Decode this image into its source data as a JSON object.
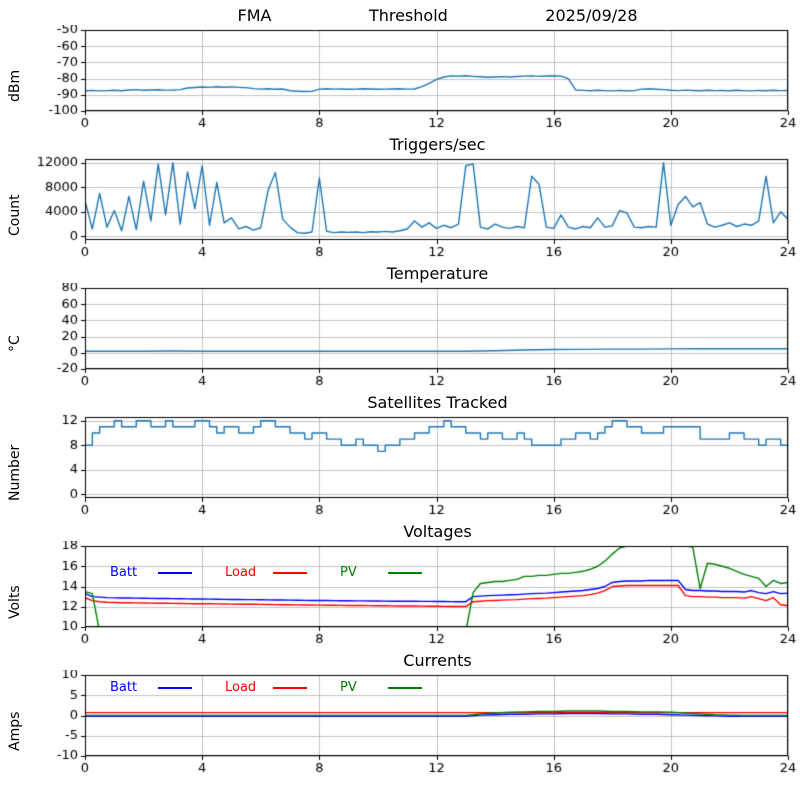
{
  "figure": {
    "background": "#ffffff",
    "grid_color": "#b4b4b4",
    "axis_color": "#000000",
    "default_line_color": "#1f77b4"
  },
  "chart_data": {
    "note": "six stacked time-series subplots, x axis hours 0-24"
  },
  "charts": [
    {
      "id": "fma",
      "title_parts": [
        "FMA",
        "Threshold",
        "2025/09/28"
      ],
      "ylabel": "dBm",
      "type": "line",
      "x_start": 0,
      "x_step": 0.25,
      "xlim": [
        0,
        24
      ],
      "ylim": [
        -100,
        -50
      ],
      "xticks": [
        0,
        4,
        8,
        12,
        16,
        20,
        24
      ],
      "yticks": [
        -100,
        -90,
        -80,
        -70,
        -60,
        -50
      ],
      "grid": true,
      "series": [
        {
          "name": "signal-dbm",
          "color": "#1f77b4",
          "values": [
            -87.5,
            -87.3,
            -87.6,
            -87.4,
            -87.2,
            -87.5,
            -87.0,
            -86.8,
            -87.2,
            -87.0,
            -86.9,
            -87.1,
            -87.0,
            -86.8,
            -85.8,
            -85.5,
            -85.2,
            -85.4,
            -85.0,
            -85.3,
            -85.1,
            -85.4,
            -85.6,
            -86.2,
            -86.5,
            -86.3,
            -86.6,
            -86.4,
            -87.5,
            -87.8,
            -88.0,
            -87.9,
            -86.5,
            -86.3,
            -86.5,
            -86.4,
            -86.6,
            -86.5,
            -86.3,
            -86.4,
            -86.6,
            -86.5,
            -86.4,
            -86.3,
            -86.5,
            -86.4,
            -85.0,
            -83.0,
            -80.5,
            -79.0,
            -78.3,
            -78.5,
            -78.2,
            -78.6,
            -78.9,
            -79.2,
            -79.0,
            -78.8,
            -79.0,
            -78.7,
            -78.5,
            -78.3,
            -78.6,
            -78.4,
            -78.2,
            -78.5,
            -80.0,
            -87.0,
            -87.3,
            -87.5,
            -87.2,
            -87.4,
            -87.6,
            -87.3,
            -87.5,
            -87.4,
            -86.5,
            -86.3,
            -86.6,
            -86.8,
            -87.2,
            -87.4,
            -87.1,
            -87.3,
            -87.5,
            -87.2,
            -87.4,
            -87.3,
            -87.5,
            -87.2,
            -87.4,
            -87.6,
            -87.3,
            -87.5,
            -87.2,
            -87.4,
            -87.3
          ]
        }
      ]
    },
    {
      "id": "triggers",
      "title": "Triggers/sec",
      "ylabel": "Count",
      "type": "line",
      "x_start": 0,
      "x_step": 0.25,
      "xlim": [
        0,
        24
      ],
      "ylim": [
        -600,
        12600
      ],
      "xticks": [
        0,
        4,
        8,
        12,
        16,
        20,
        24
      ],
      "yticks": [
        0,
        4000,
        8000,
        12000
      ],
      "grid": true,
      "series": [
        {
          "name": "trigger-count",
          "color": "#1f77b4",
          "values": [
            5800,
            1200,
            7000,
            1500,
            4200,
            900,
            6500,
            1100,
            9000,
            2500,
            11800,
            3500,
            12000,
            2000,
            10500,
            4500,
            11500,
            1800,
            8800,
            2200,
            3000,
            1200,
            1600,
            1000,
            1400,
            7500,
            10400,
            2800,
            1500,
            600,
            500,
            700,
            9500,
            800,
            600,
            700,
            650,
            700,
            600,
            750,
            700,
            800,
            700,
            900,
            1200,
            2500,
            1500,
            2200,
            1300,
            1800,
            1400,
            2000,
            11500,
            11800,
            1500,
            1200,
            2000,
            1500,
            1300,
            1600,
            1400,
            9800,
            8500,
            1500,
            1300,
            3500,
            1500,
            1200,
            1600,
            1400,
            3000,
            1500,
            1700,
            4200,
            3800,
            1500,
            1400,
            1600,
            1500,
            12000,
            1800,
            5200,
            6500,
            4800,
            5500,
            2000,
            1500,
            1800,
            2200,
            1600,
            2000,
            1800,
            2500,
            9800,
            2200,
            4000,
            2800
          ]
        }
      ]
    },
    {
      "id": "temperature",
      "title": "Temperature",
      "ylabel": "°C",
      "type": "line",
      "x_start": 0,
      "x_step": 1,
      "xlim": [
        0,
        24
      ],
      "ylim": [
        -20,
        80
      ],
      "xticks": [
        0,
        4,
        8,
        12,
        16,
        20,
        24
      ],
      "yticks": [
        -20,
        0,
        20,
        40,
        60,
        80
      ],
      "grid": true,
      "series": [
        {
          "name": "temperature-c",
          "color": "#1f77b4",
          "values": [
            2,
            2,
            2,
            2.2,
            2,
            2,
            2,
            2,
            2,
            2,
            2,
            2,
            2,
            2,
            2.5,
            3.5,
            4,
            4.2,
            4.5,
            4.5,
            4.8,
            5,
            5,
            5,
            5
          ]
        }
      ]
    },
    {
      "id": "satellites",
      "title": "Satellites Tracked",
      "ylabel": "Number",
      "type": "line",
      "draw": "step",
      "x_start": 0,
      "x_step": 0.25,
      "xlim": [
        0,
        24
      ],
      "ylim": [
        -0.6,
        12.6
      ],
      "xticks": [
        0,
        4,
        8,
        12,
        16,
        20,
        24
      ],
      "yticks": [
        0,
        4,
        8,
        12
      ],
      "grid": true,
      "series": [
        {
          "name": "satellites-tracked",
          "color": "#1f77b4",
          "values": [
            8,
            10,
            11,
            11,
            12,
            11,
            11,
            12,
            12,
            11,
            11,
            12,
            11,
            11,
            11,
            12,
            12,
            11,
            10,
            11,
            11,
            10,
            10,
            11,
            12,
            12,
            11,
            11,
            10,
            10,
            9,
            10,
            10,
            9,
            9,
            8,
            8,
            9,
            8,
            8,
            7,
            8,
            8,
            9,
            9,
            10,
            10,
            11,
            11,
            12,
            11,
            11,
            10,
            10,
            9,
            10,
            10,
            9,
            9,
            10,
            9,
            8,
            8,
            8,
            8,
            9,
            9,
            10,
            10,
            9,
            10,
            11,
            12,
            12,
            11,
            11,
            10,
            10,
            10,
            11,
            11,
            11,
            11,
            11,
            9,
            9,
            9,
            9,
            10,
            10,
            9,
            9,
            8,
            9,
            9,
            8,
            9
          ]
        }
      ]
    },
    {
      "id": "voltages",
      "title": "Voltages",
      "ylabel": "Volts",
      "type": "line",
      "x_start": 0,
      "x_step": 0.25,
      "xlim": [
        0,
        24
      ],
      "ylim": [
        10,
        18
      ],
      "xticks": [
        0,
        4,
        8,
        12,
        16,
        20,
        24
      ],
      "yticks": [
        10,
        12,
        14,
        16,
        18
      ],
      "grid": true,
      "legend": [
        {
          "label": "Batt",
          "color": "#0000ff"
        },
        {
          "label": "Load",
          "color": "#ff0000"
        },
        {
          "label": "PV",
          "color": "#008000"
        }
      ],
      "series": [
        {
          "name": "batt-volts",
          "color": "#0000ff",
          "values": [
            13.3,
            13.0,
            12.95,
            12.9,
            12.88,
            12.87,
            12.86,
            12.85,
            12.84,
            12.83,
            12.82,
            12.81,
            12.8,
            12.79,
            12.78,
            12.77,
            12.76,
            12.75,
            12.74,
            12.73,
            12.72,
            12.71,
            12.7,
            12.7,
            12.69,
            12.68,
            12.67,
            12.66,
            12.65,
            12.64,
            12.63,
            12.62,
            12.62,
            12.61,
            12.6,
            12.6,
            12.59,
            12.58,
            12.58,
            12.57,
            12.57,
            12.56,
            12.55,
            12.55,
            12.54,
            12.54,
            12.53,
            12.53,
            12.52,
            12.52,
            12.51,
            12.5,
            12.5,
            13.0,
            13.05,
            13.1,
            13.12,
            13.15,
            13.18,
            13.2,
            13.25,
            13.3,
            13.32,
            13.35,
            13.4,
            13.45,
            13.5,
            13.55,
            13.6,
            13.7,
            13.8,
            14.0,
            14.4,
            14.5,
            14.55,
            14.55,
            14.55,
            14.6,
            14.6,
            14.6,
            14.6,
            14.6,
            13.7,
            13.6,
            13.6,
            13.55,
            13.55,
            13.5,
            13.5,
            13.5,
            13.45,
            13.6,
            13.4,
            13.3,
            13.5,
            13.3,
            13.35
          ]
        },
        {
          "name": "load-volts",
          "color": "#ff0000",
          "values": [
            12.9,
            12.6,
            12.5,
            12.45,
            12.42,
            12.4,
            12.39,
            12.38,
            12.37,
            12.36,
            12.35,
            12.34,
            12.33,
            12.32,
            12.31,
            12.3,
            12.3,
            12.29,
            12.28,
            12.27,
            12.26,
            12.25,
            12.25,
            12.24,
            12.23,
            12.22,
            12.21,
            12.2,
            12.2,
            12.19,
            12.18,
            12.17,
            12.16,
            12.15,
            12.15,
            12.14,
            12.13,
            12.12,
            12.12,
            12.11,
            12.1,
            12.1,
            12.09,
            12.08,
            12.08,
            12.07,
            12.06,
            12.05,
            12.05,
            12.04,
            12.03,
            12.02,
            12.02,
            12.5,
            12.55,
            12.6,
            12.62,
            12.65,
            12.68,
            12.7,
            12.75,
            12.8,
            12.82,
            12.85,
            12.9,
            12.95,
            13.0,
            13.05,
            13.1,
            13.2,
            13.35,
            13.6,
            14.0,
            14.05,
            14.1,
            14.1,
            14.1,
            14.1,
            14.1,
            14.1,
            14.1,
            14.1,
            13.1,
            13.0,
            13.0,
            12.95,
            12.95,
            12.9,
            12.9,
            12.9,
            12.85,
            13.0,
            12.8,
            12.6,
            12.9,
            12.2,
            12.1
          ]
        },
        {
          "name": "pv-volts",
          "color": "#008000",
          "values": [
            13.5,
            13.3,
            9.5,
            9.5,
            9.5,
            9.5,
            9.5,
            9.5,
            9.5,
            9.5,
            9.5,
            9.5,
            9.5,
            9.5,
            9.5,
            9.5,
            9.5,
            9.5,
            9.5,
            9.5,
            9.5,
            9.5,
            9.5,
            9.5,
            9.5,
            9.5,
            9.5,
            9.5,
            9.5,
            9.5,
            9.5,
            9.5,
            9.5,
            9.5,
            9.5,
            9.5,
            9.5,
            9.5,
            9.5,
            9.5,
            9.5,
            9.5,
            9.5,
            9.5,
            9.5,
            9.5,
            9.5,
            9.5,
            9.5,
            9.5,
            9.5,
            9.5,
            9.5,
            13.4,
            14.3,
            14.4,
            14.5,
            14.5,
            14.6,
            14.7,
            15.0,
            15.0,
            15.1,
            15.1,
            15.2,
            15.3,
            15.3,
            15.4,
            15.5,
            15.7,
            16.0,
            16.5,
            17.2,
            17.8,
            18.0,
            18.05,
            18.1,
            18.1,
            18.1,
            18.05,
            18.0,
            18.0,
            18.0,
            17.9,
            13.8,
            16.3,
            16.2,
            16.0,
            15.8,
            15.5,
            15.2,
            15.0,
            14.8,
            14.0,
            14.6,
            14.3,
            14.4
          ]
        }
      ]
    },
    {
      "id": "currents",
      "title": "Currents",
      "ylabel": "Amps",
      "type": "line",
      "x_start": 0,
      "x_step": 0.5,
      "xlim": [
        0,
        24
      ],
      "ylim": [
        -10,
        10
      ],
      "xticks": [
        0,
        4,
        8,
        12,
        16,
        20,
        24
      ],
      "yticks": [
        -10,
        -5,
        0,
        5,
        10
      ],
      "grid": true,
      "legend": [
        {
          "label": "Batt",
          "color": "#0000ff"
        },
        {
          "label": "Load",
          "color": "#ff0000"
        },
        {
          "label": "PV",
          "color": "#008000"
        }
      ],
      "series": [
        {
          "name": "batt-amps",
          "color": "#0000ff",
          "values": [
            -0.2,
            -0.2,
            -0.2,
            -0.2,
            -0.2,
            -0.2,
            -0.2,
            -0.2,
            -0.2,
            -0.2,
            -0.2,
            -0.2,
            -0.2,
            -0.2,
            -0.2,
            -0.2,
            -0.2,
            -0.2,
            -0.2,
            -0.2,
            -0.2,
            -0.2,
            -0.2,
            -0.2,
            -0.2,
            -0.2,
            -0.2,
            0.1,
            0.2,
            0.3,
            0.3,
            0.4,
            0.4,
            0.5,
            0.5,
            0.5,
            0.4,
            0.4,
            0.3,
            0.3,
            0.2,
            0.1,
            0.0,
            -0.1,
            -0.2,
            -0.2,
            -0.2,
            -0.2,
            -0.2
          ]
        },
        {
          "name": "load-amps",
          "color": "#ff0000",
          "values": [
            0.7,
            0.7,
            0.7,
            0.7,
            0.7,
            0.7,
            0.7,
            0.7,
            0.7,
            0.7,
            0.7,
            0.7,
            0.7,
            0.7,
            0.7,
            0.7,
            0.7,
            0.7,
            0.7,
            0.7,
            0.7,
            0.7,
            0.7,
            0.7,
            0.7,
            0.7,
            0.7,
            0.7,
            0.7,
            0.7,
            0.7,
            0.7,
            0.7,
            0.7,
            0.7,
            0.7,
            0.7,
            0.7,
            0.7,
            0.7,
            0.7,
            0.7,
            0.7,
            0.7,
            0.7,
            0.7,
            0.7,
            0.7,
            0.7
          ]
        },
        {
          "name": "pv-amps",
          "color": "#008000",
          "values": [
            0.0,
            0.0,
            0.0,
            0.0,
            0.0,
            0.0,
            0.0,
            0.0,
            0.0,
            0.0,
            0.0,
            0.0,
            0.0,
            0.0,
            0.0,
            0.0,
            0.0,
            0.0,
            0.0,
            0.0,
            0.0,
            0.0,
            0.0,
            0.0,
            0.0,
            0.0,
            0.0,
            0.4,
            0.6,
            0.8,
            0.9,
            1.0,
            1.0,
            1.1,
            1.1,
            1.1,
            1.0,
            1.0,
            0.9,
            0.9,
            0.8,
            0.6,
            0.4,
            0.2,
            0.1,
            0.0,
            0.0,
            0.0,
            0.0
          ]
        }
      ]
    }
  ]
}
